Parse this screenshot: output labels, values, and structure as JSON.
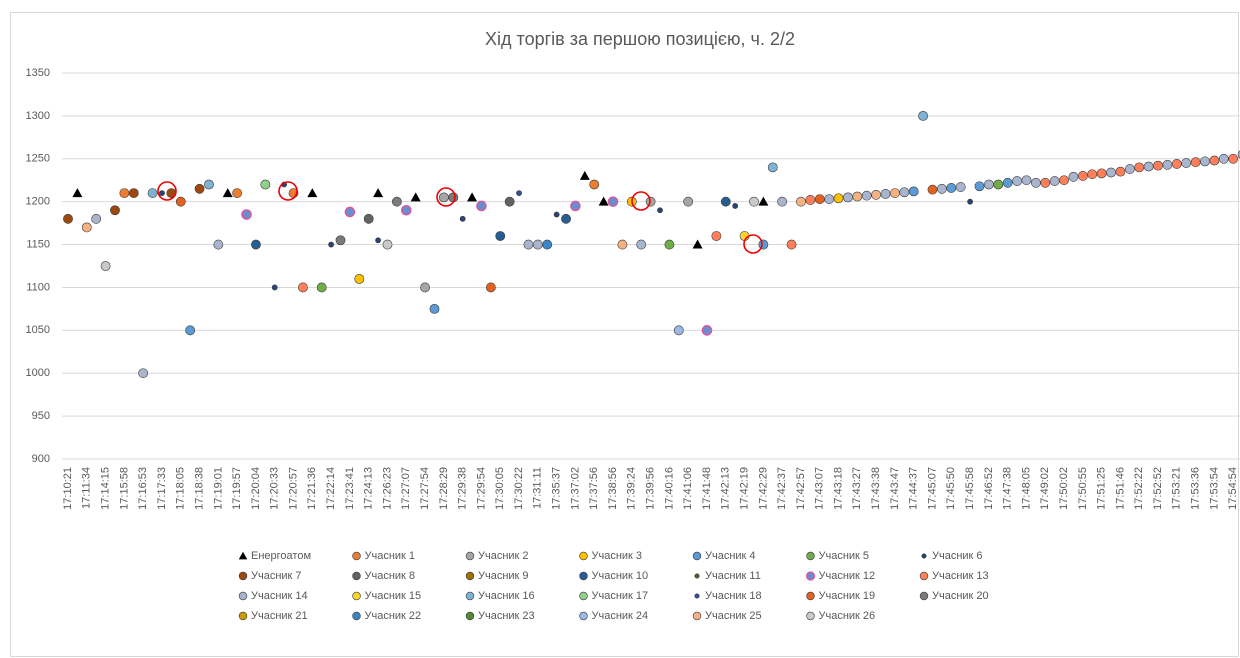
{
  "chart_data": {
    "type": "scatter",
    "title": "Хід торгів за першою позицією, ч. 2/2",
    "categories": [
      "17:10:21",
      null,
      "17:11:34",
      null,
      "17:14:15",
      null,
      "17:15:58",
      null,
      "17:16:53",
      null,
      "17:17:33",
      null,
      "17:18:05",
      null,
      "17:18:38",
      null,
      "17:19:01",
      null,
      "17:19:57",
      null,
      "17:20:04",
      null,
      "17:20:33",
      null,
      "17:20:57",
      null,
      "17:21:36",
      null,
      "17:22:14",
      null,
      "17:23:41",
      null,
      "17:24:13",
      null,
      "17:26:23",
      null,
      "17:27:07",
      null,
      "17:27:54",
      null,
      "17:28:29",
      null,
      "17:29:38",
      null,
      "17:29:54",
      null,
      "17:30:05",
      null,
      "17:30:22",
      null,
      "17:31:11",
      null,
      "17:35:37",
      null,
      "17:37:02",
      null,
      "17:37:56",
      null,
      "17:38:56",
      null,
      "17:39:24",
      null,
      "17:39:56",
      null,
      "17:40:16",
      null,
      "17:41:06",
      null,
      "17:41:48",
      null,
      "17:42:13",
      null,
      "17:42:19",
      null,
      "17:42:29",
      null,
      "17:42:37",
      null,
      "17:42:57",
      null,
      "17:43:07",
      null,
      "17:43:18",
      null,
      "17:43:27",
      null,
      "17:43:38",
      null,
      "17:43:47",
      null,
      "17:44:37",
      null,
      "17:45:07",
      null,
      "17:45:50",
      null,
      "17:45:58",
      null,
      "17:46:52",
      null,
      "17:47:38",
      null,
      "17:48:05",
      null,
      "17:49:02",
      null,
      "17:50:02",
      null,
      "17:50:55",
      null,
      "17:51:25",
      null,
      "17:51:46",
      null,
      "17:52:22",
      null,
      "17:52:52",
      null,
      "17:53:21",
      null,
      "17:53:36",
      null,
      "17:53:54",
      null,
      "17:54:54",
      null
    ],
    "ylim": [
      900,
      1350
    ],
    "yticks": [
      900,
      950,
      1000,
      1050,
      1100,
      1150,
      1200,
      1250,
      1300,
      1350
    ],
    "grid": true,
    "series": [
      {
        "name": "Енергоатом",
        "color": "#000000",
        "marker": "triangle",
        "x": [
          1,
          17,
          26,
          33,
          37,
          43,
          55,
          57,
          67,
          74
        ],
        "values": [
          1210,
          1210,
          1210,
          1210,
          1205,
          1205,
          1230,
          1200,
          1150,
          1200
        ]
      },
      {
        "name": "Учасник 1",
        "color": "#ed7d31",
        "x": [
          6,
          18,
          24,
          56
        ],
        "values": [
          1210,
          1210,
          1210,
          1220
        ]
      },
      {
        "name": "Учасник 2",
        "color": "#a5a5a5",
        "x": [
          38,
          40,
          62,
          66
        ],
        "values": [
          1100,
          1205,
          1200,
          1200
        ]
      },
      {
        "name": "Учасник 3",
        "color": "#ffc000",
        "x": [
          31,
          60,
          82
        ],
        "values": [
          1110,
          1200,
          1204
        ]
      },
      {
        "name": "Учасник 4",
        "color": "#5b9bd5",
        "x": [
          13,
          39,
          74,
          90,
          94,
          97,
          100
        ],
        "values": [
          1050,
          1075,
          1150,
          1212,
          1216,
          1218,
          1222
        ]
      },
      {
        "name": "Учасник 5",
        "color": "#70ad47",
        "x": [
          27,
          64,
          99
        ],
        "values": [
          1100,
          1150,
          1220
        ]
      },
      {
        "name": "Учасник 6",
        "color": "#264478",
        "size": "small",
        "x": [
          10,
          22,
          23,
          28,
          33,
          42,
          52,
          63,
          71,
          96
        ],
        "values": [
          1210,
          1100,
          1220,
          1150,
          1155,
          1180,
          1185,
          1190,
          1195,
          1200
        ]
      },
      {
        "name": "Учасник 7",
        "color": "#9e480e",
        "x": [
          0,
          5,
          7,
          11,
          14
        ],
        "values": [
          1180,
          1190,
          1210,
          1210,
          1215
        ]
      },
      {
        "name": "Учасник 8",
        "color": "#636363",
        "x": [
          32,
          47
        ],
        "values": [
          1180,
          1200
        ]
      },
      {
        "name": "Учасник 9",
        "color": "#997300",
        "x": [],
        "values": []
      },
      {
        "name": "Учасник 10",
        "color": "#255e91",
        "x": [
          20,
          46,
          53,
          70
        ],
        "values": [
          1150,
          1160,
          1180,
          1200
        ]
      },
      {
        "name": "Учасник 11",
        "color": "#43682b",
        "size": "small",
        "x": [],
        "values": []
      },
      {
        "name": "Учасник 12",
        "color": "#698ed0",
        "edgecolor": "#e0559b",
        "x": [
          19,
          30,
          36,
          44,
          54,
          58,
          68
        ],
        "values": [
          1185,
          1188,
          1190,
          1195,
          1195,
          1200,
          1050
        ]
      },
      {
        "name": "Учасник 13",
        "color": "#ff7f5a",
        "x": [
          25,
          69,
          77,
          79,
          104,
          106,
          108,
          109,
          110,
          112,
          114,
          116,
          118,
          120,
          122,
          124
        ],
        "values": [
          1100,
          1160,
          1150,
          1202,
          1222,
          1225,
          1230,
          1232,
          1233,
          1235,
          1240,
          1242,
          1244,
          1246,
          1248,
          1250
        ]
      },
      {
        "name": "Учасник 14",
        "color": "#a9b5cf",
        "x": [
          3,
          8,
          16,
          49,
          50,
          61,
          76,
          81,
          83,
          85,
          87,
          89,
          93,
          95,
          98,
          101,
          102,
          103,
          105,
          107,
          111,
          113,
          115,
          117,
          119,
          121,
          123,
          125
        ],
        "values": [
          1180,
          1000,
          1150,
          1150,
          1150,
          1150,
          1200,
          1203,
          1205,
          1207,
          1209,
          1211,
          1215,
          1217,
          1220,
          1224,
          1225,
          1222,
          1224,
          1229,
          1234,
          1238,
          1241,
          1243,
          1245,
          1247,
          1250,
          1255
        ]
      },
      {
        "name": "Учасник 15",
        "color": "#ffd42a",
        "x": [
          72
        ],
        "values": [
          1160
        ]
      },
      {
        "name": "Учасник 16",
        "color": "#7fb3d5",
        "x": [
          9,
          15,
          75,
          91
        ],
        "values": [
          1210,
          1220,
          1240,
          1300
        ]
      },
      {
        "name": "Учасник 17",
        "color": "#8fd18a",
        "x": [
          21
        ],
        "values": [
          1220
        ]
      },
      {
        "name": "Учасник 18",
        "color": "#2c4f9e",
        "size": "small",
        "x": [
          48
        ],
        "values": [
          1210
        ]
      },
      {
        "name": "Учасник 19",
        "color": "#e2611f",
        "x": [
          12,
          45,
          80,
          92
        ],
        "values": [
          1200,
          1100,
          1203,
          1214
        ]
      },
      {
        "name": "Учасник 20",
        "color": "#7b7b7b",
        "x": [
          29,
          35,
          41
        ],
        "values": [
          1155,
          1200,
          1205
        ]
      },
      {
        "name": "Учасник 21",
        "color": "#cc9a06",
        "x": [],
        "values": []
      },
      {
        "name": "Учасник 22",
        "color": "#3a86c8",
        "x": [
          51
        ],
        "values": [
          1150
        ]
      },
      {
        "name": "Учасник 23",
        "color": "#4f8a3c",
        "x": [],
        "values": []
      },
      {
        "name": "Учасник 24",
        "color": "#9db8e6",
        "x": [
          65
        ],
        "values": [
          1050
        ]
      },
      {
        "name": "Учасник 25",
        "color": "#f4b183",
        "x": [
          2,
          59,
          78,
          84,
          86,
          88
        ],
        "values": [
          1170,
          1150,
          1200,
          1206,
          1208,
          1210
        ]
      },
      {
        "name": "Учасник 26",
        "color": "#c9c9c9",
        "x": [
          4,
          34,
          73
        ],
        "values": [
          1125,
          1150,
          1200
        ]
      }
    ]
  }
}
